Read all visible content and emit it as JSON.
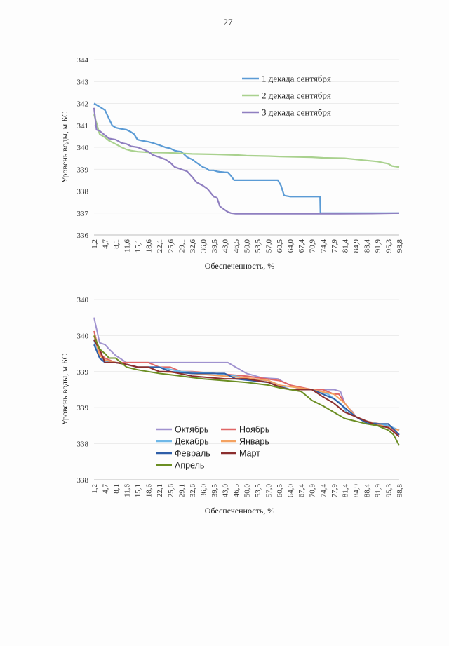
{
  "page": {
    "number": "27"
  },
  "chart_data": [
    {
      "type": "line",
      "title": "",
      "xlabel": "Обеспеченность, %",
      "ylabel": "Уровень воды, м БС",
      "ylim": [
        336,
        344
      ],
      "yticks": [
        "336",
        "337",
        "338",
        "339",
        "340",
        "341",
        "342",
        "343",
        "344"
      ],
      "xrange": [
        1.2,
        98.8
      ],
      "xtick_labels": [
        "1,2",
        "4,7",
        "8,1",
        "11,6",
        "15,1",
        "18,6",
        "22,1",
        "25,6",
        "29,1",
        "32,6",
        "36,0",
        "39,5",
        "43,0",
        "46,5",
        "50,0",
        "53,5",
        "57,0",
        "60,5",
        "64,0",
        "67,4",
        "70,9",
        "74,4",
        "77,9",
        "81,4",
        "84,9",
        "88,4",
        "91,9",
        "95,3",
        "98,8"
      ],
      "legend_position": "top-right",
      "series": [
        {
          "name": "1 декада сентября",
          "color": "#5b9bd5",
          "x": [
            1.2,
            3,
            4.7,
            6,
            7,
            8.1,
            9.5,
            11.6,
            13,
            14,
            15.1,
            16.5,
            18.6,
            20,
            22.1,
            24,
            25.6,
            27,
            28,
            29.1,
            31,
            32.6,
            34,
            36,
            37,
            38,
            39.5,
            40.5,
            41.5,
            43,
            44,
            45,
            46,
            46.5,
            50,
            55,
            60,
            61,
            62,
            64,
            67.4,
            70,
            73.5,
            73.6,
            74.4,
            80,
            90,
            98.8
          ],
          "y": [
            342,
            341.85,
            341.7,
            341.3,
            341,
            340.9,
            340.85,
            340.8,
            340.7,
            340.6,
            340.35,
            340.3,
            340.25,
            340.2,
            340.1,
            340,
            339.95,
            339.85,
            339.82,
            339.8,
            339.55,
            339.45,
            339.3,
            339.1,
            339.05,
            338.95,
            338.95,
            338.9,
            338.88,
            338.86,
            338.85,
            338.7,
            338.5,
            338.5,
            338.5,
            338.5,
            338.5,
            338.25,
            337.8,
            337.75,
            337.75,
            337.75,
            337.75,
            337.0,
            337.0,
            337.0,
            337.0,
            337.0
          ]
        },
        {
          "name": "2 декада сентября",
          "color": "#a9d18e",
          "x": [
            1.2,
            3,
            4.7,
            6,
            8.1,
            10,
            11.6,
            13,
            15.1,
            18.6,
            25,
            32.6,
            40,
            46.5,
            50,
            57,
            60.5,
            70.9,
            74.4,
            81.4,
            84.9,
            88.4,
            91.9,
            95.3,
            96.5,
            98.8
          ],
          "y": [
            341.5,
            340.6,
            340.45,
            340.3,
            340.15,
            340,
            339.9,
            339.85,
            339.8,
            339.77,
            339.75,
            339.7,
            339.68,
            339.65,
            339.62,
            339.6,
            339.58,
            339.55,
            339.52,
            339.5,
            339.45,
            339.4,
            339.35,
            339.25,
            339.15,
            339.1
          ]
        },
        {
          "name": "3 декада сентября",
          "color": "#8f7fc0",
          "x": [
            1.2,
            2,
            3,
            4.7,
            6,
            8.1,
            10,
            11.6,
            13,
            15.1,
            17,
            18.6,
            20,
            22.1,
            24,
            25.6,
            27,
            29.1,
            31,
            32.6,
            34,
            36,
            37.5,
            39.5,
            40.5,
            41.5,
            43,
            44,
            45,
            46.5,
            48,
            50,
            60,
            70,
            80,
            90,
            98.8
          ],
          "y": [
            341.8,
            340.8,
            340.75,
            340.55,
            340.4,
            340.35,
            340.2,
            340.15,
            340.05,
            340,
            339.9,
            339.8,
            339.65,
            339.55,
            339.45,
            339.3,
            339.1,
            339,
            338.9,
            338.65,
            338.4,
            338.25,
            338.1,
            337.75,
            337.7,
            337.3,
            337.15,
            337.05,
            337,
            336.97,
            336.97,
            336.97,
            336.97,
            336.97,
            336.97,
            336.98,
            337.0
          ]
        }
      ]
    },
    {
      "type": "line",
      "title": "",
      "xlabel": "Обеспеченность, %",
      "ylabel": "Уровень воды, м БС",
      "ylim": [
        338,
        340
      ],
      "yticks": [
        "338",
        "338",
        "339",
        "339",
        "340",
        "340"
      ],
      "xrange": [
        1.2,
        98.8
      ],
      "xtick_labels": [
        "1,2",
        "4,7",
        "8,1",
        "11,6",
        "15,1",
        "18,6",
        "22,1",
        "25,6",
        "29,1",
        "32,6",
        "36,0",
        "39,5",
        "43,0",
        "46,5",
        "50,0",
        "53,5",
        "57,0",
        "60,5",
        "64,0",
        "67,4",
        "70,9",
        "74,4",
        "77,9",
        "81,4",
        "84,9",
        "88,4",
        "91,9",
        "95,3",
        "98,8"
      ],
      "legend_position": "bottom-left",
      "series": [
        {
          "name": "Октябрь",
          "color": "#a092cf",
          "x": [
            1.2,
            3,
            4.7,
            6,
            8.1,
            11.6,
            20,
            30,
            40,
            44,
            46.5,
            49,
            50,
            53,
            55,
            60,
            62,
            64,
            67.4,
            68,
            70.9,
            74.4,
            77,
            78,
            80,
            81.4,
            82.5,
            84,
            84.9,
            88.4,
            91.9,
            95.3,
            98.8
          ],
          "y": [
            339.8,
            339.52,
            339.5,
            339.45,
            339.38,
            339.3,
            339.3,
            339.3,
            339.3,
            339.3,
            339.25,
            339.2,
            339.18,
            339.15,
            339.13,
            339.12,
            339.08,
            339.05,
            339,
            339,
            339,
            339,
            339,
            339,
            338.98,
            338.85,
            338.8,
            338.75,
            338.7,
            338.65,
            338.62,
            338.6,
            338.55
          ]
        },
        {
          "name": "Ноябрь",
          "color": "#e06666",
          "x": [
            1.2,
            3,
            4.7,
            8.1,
            11.6,
            18.6,
            22.1,
            25.6,
            29.1,
            32.6,
            40,
            50,
            60.5,
            64,
            70.9,
            74.4,
            77.9,
            79.5,
            81.4,
            84.9,
            88.4,
            95.3,
            98.8
          ],
          "y": [
            339.65,
            339.4,
            339.35,
            339.3,
            339.3,
            339.3,
            339.25,
            339.25,
            339.2,
            339.2,
            339.18,
            339.15,
            339.1,
            339.05,
            339,
            339,
            338.95,
            338.95,
            338.85,
            338.7,
            338.65,
            338.6,
            338.5
          ]
        },
        {
          "name": "Декабрь",
          "color": "#6fb8e8",
          "x": [
            1.2,
            3,
            4.7,
            8.1,
            11.6,
            15.1,
            22.1,
            29.1,
            40,
            46.5,
            50,
            57,
            60.5,
            64,
            70.9,
            76,
            80,
            82,
            84.9,
            88.4,
            92,
            95.3,
            98.8
          ],
          "y": [
            339.55,
            339.35,
            339.32,
            339.3,
            339.28,
            339.25,
            339.25,
            339.2,
            339.18,
            339.15,
            339.12,
            339.1,
            339.05,
            339,
            339,
            338.95,
            338.85,
            338.75,
            338.7,
            338.65,
            338.62,
            338.6,
            338.55
          ]
        },
        {
          "name": "Январь",
          "color": "#f4a261",
          "x": [
            1.2,
            3,
            4.7,
            8.1,
            11.6,
            15.1,
            18.6,
            22.1,
            32.6,
            43,
            50,
            57,
            60.5,
            70.9,
            77.9,
            81.4,
            84.9,
            88.4,
            95.3,
            98.8
          ],
          "y": [
            339.6,
            339.38,
            339.33,
            339.3,
            339.28,
            339.25,
            339.25,
            339.2,
            339.18,
            339.15,
            339.13,
            339.1,
            339.05,
            339,
            338.95,
            338.85,
            338.7,
            338.65,
            338.58,
            338.55
          ]
        },
        {
          "name": "Февраль",
          "color": "#2e5ea8",
          "x": [
            1.2,
            3,
            4.7,
            8.1,
            11.6,
            15.1,
            22.1,
            25.6,
            32.6,
            43,
            46.5,
            57,
            60.5,
            64,
            70.9,
            77.9,
            81.4,
            84.9,
            88.4,
            91.9,
            95.3,
            98.8
          ],
          "y": [
            339.5,
            339.35,
            339.3,
            339.3,
            339.28,
            339.25,
            339.25,
            339.2,
            339.18,
            339.18,
            339.12,
            339.08,
            339.03,
            339,
            339,
            338.9,
            338.8,
            338.7,
            338.63,
            338.62,
            338.62,
            338.5
          ]
        },
        {
          "name": "Март",
          "color": "#8b2e2e",
          "x": [
            1.2,
            3,
            4.7,
            8.1,
            11.6,
            15.1,
            18.6,
            22.1,
            25.6,
            32.6,
            43,
            50,
            57,
            60.5,
            64,
            70.9,
            74.4,
            77.9,
            81.4,
            84.9,
            91.9,
            95.3,
            98.8
          ],
          "y": [
            339.55,
            339.45,
            339.3,
            339.3,
            339.28,
            339.25,
            339.25,
            339.2,
            339.2,
            339.15,
            339.12,
            339.12,
            339.08,
            339.03,
            339,
            339,
            338.92,
            338.85,
            338.75,
            338.7,
            338.6,
            338.58,
            338.48
          ]
        },
        {
          "name": "Апрель",
          "color": "#6b8e23",
          "x": [
            1.2,
            3,
            4.7,
            6,
            8.1,
            11.6,
            15.1,
            18.6,
            22.1,
            29.1,
            36,
            43,
            50,
            57,
            60.5,
            64,
            67.4,
            68.5,
            70.9,
            74.4,
            77.9,
            81.4,
            84.9,
            88.4,
            91.9,
            95.3,
            97,
            98.8
          ],
          "y": [
            339.6,
            339.45,
            339.4,
            339.35,
            339.35,
            339.25,
            339.22,
            339.2,
            339.18,
            339.15,
            339.12,
            339.1,
            339.08,
            339.05,
            339.02,
            339,
            338.98,
            338.95,
            338.88,
            338.82,
            338.75,
            338.68,
            338.65,
            338.62,
            338.6,
            338.55,
            338.5,
            338.38
          ]
        }
      ]
    }
  ]
}
